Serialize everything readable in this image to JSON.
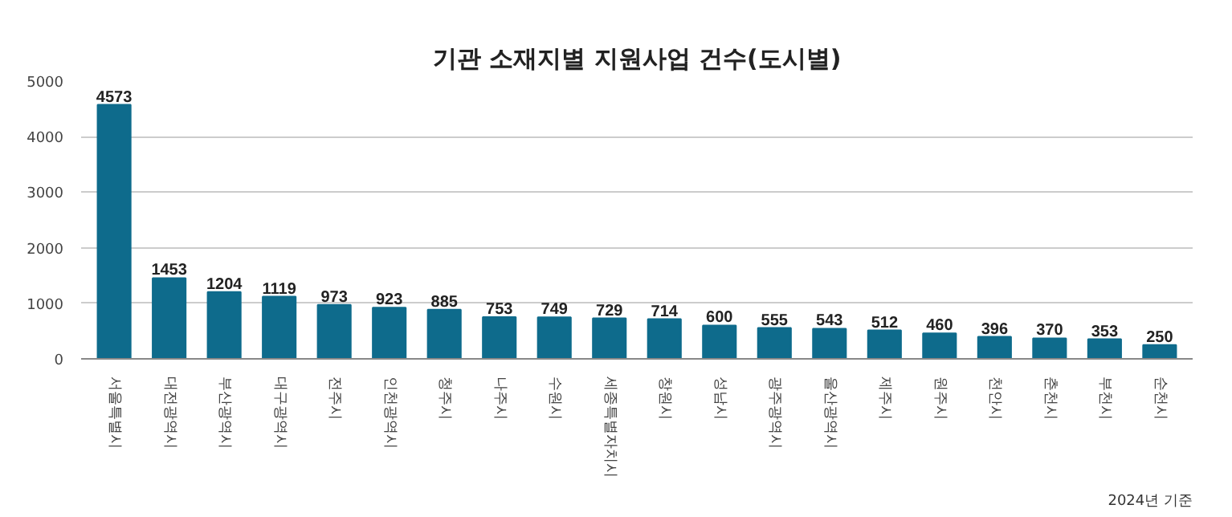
{
  "chart_data": {
    "type": "bar",
    "title": "기관 소재지별 지원사업 건수(도시별)",
    "categories": [
      "서울특별시",
      "대전광역시",
      "부산광역시",
      "대구광역시",
      "전주시",
      "인천광역시",
      "청주시",
      "나주시",
      "수원시",
      "세종특별자치시",
      "창원시",
      "성남시",
      "광주광역시",
      "울산광역시",
      "제주시",
      "원주시",
      "천안시",
      "춘천시",
      "부천시",
      "순천시"
    ],
    "values": [
      4573,
      1453,
      1204,
      1119,
      973,
      923,
      885,
      753,
      749,
      729,
      714,
      600,
      555,
      543,
      512,
      460,
      396,
      370,
      353,
      250
    ],
    "color": "#0e6b8c",
    "ylim": [
      0,
      5000
    ],
    "yticks": [
      0,
      1000,
      2000,
      3000,
      4000,
      5000
    ],
    "grid": "y",
    "data_labels": true,
    "annotations": [
      "2024년 기준"
    ]
  }
}
